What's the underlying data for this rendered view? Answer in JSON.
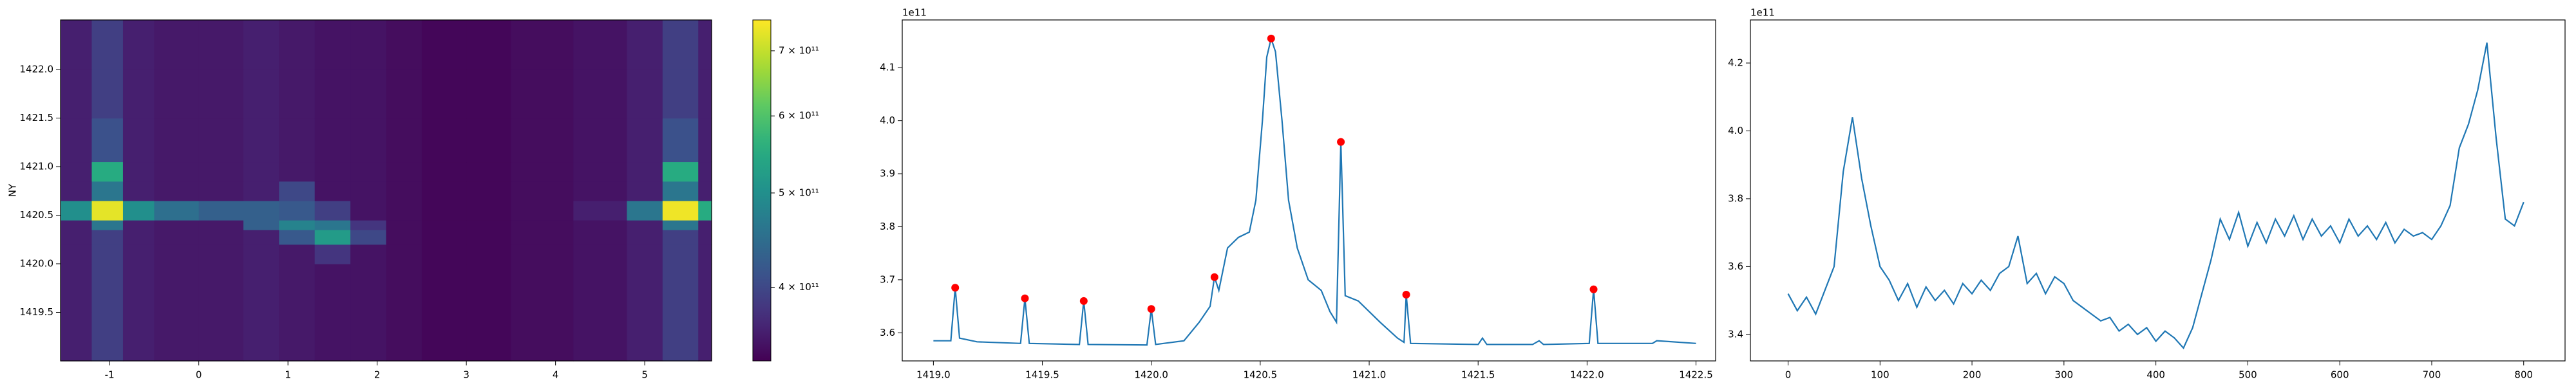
{
  "chart_data": [
    {
      "type": "heatmap",
      "ylabel": "NY",
      "colormap": "viridis",
      "xlim": [
        -1.55,
        5.75
      ],
      "ylim": [
        1419.0,
        1422.51
      ],
      "xticks": [
        -1,
        0,
        1,
        2,
        3,
        4,
        5
      ],
      "yticks": [
        1419.5,
        {
          "value": 1420,
          "label": "1420.0"
        },
        1420.5,
        {
          "value": 1421,
          "label": "1421.0"
        },
        1421.5,
        {
          "value": 1422,
          "label": "1422.0"
        }
      ],
      "x_edges": [
        -1.55,
        -1.2,
        -0.85,
        -0.5,
        0,
        0.5,
        0.9,
        1.3,
        1.7,
        2.1,
        2.5,
        3.0,
        3.5,
        4.2,
        4.8,
        5.2,
        5.6,
        5.75
      ],
      "y_edges": [
        1419.0,
        1419.5,
        1420.0,
        1420.2,
        1420.35,
        1420.45,
        1420.65,
        1420.85,
        1421.05,
        1421.5,
        1422.0,
        1422.51
      ],
      "z": [
        [
          360000000000.0,
          390000000000.0,
          360000000000.0,
          355000000000.0,
          355000000000.0,
          360000000000.0,
          355000000000.0,
          350000000000.0,
          350000000000.0,
          345000000000.0,
          340000000000.0,
          340000000000.0,
          345000000000.0,
          350000000000.0,
          360000000000.0,
          390000000000.0,
          360000000000.0
        ],
        [
          360000000000.0,
          390000000000.0,
          360000000000.0,
          355000000000.0,
          355000000000.0,
          360000000000.0,
          355000000000.0,
          350000000000.0,
          350000000000.0,
          345000000000.0,
          340000000000.0,
          340000000000.0,
          345000000000.0,
          350000000000.0,
          360000000000.0,
          390000000000.0,
          360000000000.0
        ],
        [
          360000000000.0,
          390000000000.0,
          360000000000.0,
          355000000000.0,
          355000000000.0,
          360000000000.0,
          355000000000.0,
          380000000000.0,
          350000000000.0,
          345000000000.0,
          340000000000.0,
          340000000000.0,
          345000000000.0,
          350000000000.0,
          360000000000.0,
          390000000000.0,
          360000000000.0
        ],
        [
          360000000000.0,
          390000000000.0,
          360000000000.0,
          355000000000.0,
          355000000000.0,
          360000000000.0,
          420000000000.0,
          520000000000.0,
          400000000000.0,
          345000000000.0,
          340000000000.0,
          340000000000.0,
          345000000000.0,
          350000000000.0,
          360000000000.0,
          390000000000.0,
          360000000000.0
        ],
        [
          360000000000.0,
          460000000000.0,
          360000000000.0,
          355000000000.0,
          355000000000.0,
          430000000000.0,
          480000000000.0,
          460000000000.0,
          380000000000.0,
          345000000000.0,
          340000000000.0,
          340000000000.0,
          345000000000.0,
          350000000000.0,
          360000000000.0,
          460000000000.0,
          360000000000.0
        ],
        [
          500000000000.0,
          730000000000.0,
          500000000000.0,
          450000000000.0,
          430000000000.0,
          430000000000.0,
          420000000000.0,
          390000000000.0,
          350000000000.0,
          345000000000.0,
          340000000000.0,
          340000000000.0,
          345000000000.0,
          360000000000.0,
          460000000000.0,
          740000000000.0,
          550000000000.0
        ],
        [
          360000000000.0,
          460000000000.0,
          360000000000.0,
          355000000000.0,
          355000000000.0,
          360000000000.0,
          400000000000.0,
          350000000000.0,
          350000000000.0,
          345000000000.0,
          340000000000.0,
          340000000000.0,
          345000000000.0,
          350000000000.0,
          360000000000.0,
          460000000000.0,
          360000000000.0
        ],
        [
          360000000000.0,
          550000000000.0,
          360000000000.0,
          355000000000.0,
          355000000000.0,
          360000000000.0,
          355000000000.0,
          350000000000.0,
          350000000000.0,
          345000000000.0,
          340000000000.0,
          340000000000.0,
          345000000000.0,
          350000000000.0,
          360000000000.0,
          550000000000.0,
          360000000000.0
        ],
        [
          360000000000.0,
          410000000000.0,
          360000000000.0,
          355000000000.0,
          355000000000.0,
          360000000000.0,
          355000000000.0,
          350000000000.0,
          350000000000.0,
          345000000000.0,
          340000000000.0,
          340000000000.0,
          345000000000.0,
          350000000000.0,
          360000000000.0,
          410000000000.0,
          360000000000.0
        ],
        [
          360000000000.0,
          390000000000.0,
          360000000000.0,
          355000000000.0,
          355000000000.0,
          360000000000.0,
          355000000000.0,
          350000000000.0,
          350000000000.0,
          345000000000.0,
          340000000000.0,
          340000000000.0,
          345000000000.0,
          350000000000.0,
          360000000000.0,
          390000000000.0,
          360000000000.0
        ],
        [
          360000000000.0,
          390000000000.0,
          360000000000.0,
          355000000000.0,
          355000000000.0,
          360000000000.0,
          355000000000.0,
          350000000000.0,
          350000000000.0,
          345000000000.0,
          340000000000.0,
          340000000000.0,
          345000000000.0,
          350000000000.0,
          360000000000.0,
          390000000000.0,
          360000000000.0
        ]
      ],
      "colorbar": {
        "scale": "log",
        "lim": [
          336000000000.0,
          753000000000.0
        ],
        "ticks": [
          {
            "value": 400000000000.0,
            "label": "4 × 10¹¹"
          },
          {
            "value": 500000000000.0,
            "label": "5 × 10¹¹"
          },
          {
            "value": 600000000000.0,
            "label": "6 × 10¹¹"
          },
          {
            "value": 700000000000.0,
            "label": "7 × 10¹¹"
          }
        ]
      }
    },
    {
      "type": "line",
      "offset_label": "1e11",
      "xlim": [
        1418.857,
        1422.59
      ],
      "ylim": [
        3.547,
        4.19
      ],
      "xticks": [
        {
          "value": 1419,
          "label": "1419.0"
        },
        1419.5,
        {
          "value": 1420,
          "label": "1420.0"
        },
        1420.5,
        {
          "value": 1421,
          "label": "1421.0"
        },
        1421.5,
        {
          "value": 1422,
          "label": "1422.0"
        },
        1422.5
      ],
      "yticks": [
        3.6,
        3.7,
        3.8,
        3.9,
        {
          "value": 4,
          "label": "4.0"
        },
        4.1
      ],
      "line": {
        "color": "#1f77b4",
        "x": [
          1419.0,
          1419.08,
          1419.1,
          1419.12,
          1419.2,
          1419.4,
          1419.42,
          1419.44,
          1419.67,
          1419.69,
          1419.71,
          1419.98,
          1420.0,
          1420.02,
          1420.15,
          1420.22,
          1420.27,
          1420.29,
          1420.31,
          1420.35,
          1420.4,
          1420.45,
          1420.48,
          1420.51,
          1420.53,
          1420.55,
          1420.57,
          1420.6,
          1420.63,
          1420.67,
          1420.72,
          1420.78,
          1420.82,
          1420.85,
          1420.87,
          1420.89,
          1420.95,
          1421.05,
          1421.13,
          1421.16,
          1421.17,
          1421.19,
          1421.5,
          1421.52,
          1421.54,
          1421.75,
          1421.78,
          1421.8,
          1422.01,
          1422.03,
          1422.05,
          1422.3,
          1422.32,
          1422.5
        ],
        "values": [
          3.585,
          3.585,
          3.685,
          3.59,
          3.583,
          3.58,
          3.665,
          3.58,
          3.578,
          3.66,
          3.578,
          3.577,
          3.645,
          3.578,
          3.585,
          3.62,
          3.65,
          3.705,
          3.68,
          3.76,
          3.78,
          3.79,
          3.85,
          4.0,
          4.12,
          4.155,
          4.13,
          4.0,
          3.85,
          3.76,
          3.7,
          3.68,
          3.64,
          3.62,
          3.96,
          3.67,
          3.66,
          3.62,
          3.59,
          3.582,
          3.672,
          3.58,
          3.578,
          3.59,
          3.578,
          3.578,
          3.585,
          3.578,
          3.58,
          3.682,
          3.58,
          3.58,
          3.585,
          3.58
        ]
      },
      "peaks": {
        "color": "#ff0000",
        "x": [
          1419.1,
          1419.42,
          1419.69,
          1420.0,
          1420.29,
          1420.55,
          1420.87,
          1421.17,
          1422.03
        ],
        "values": [
          3.685,
          3.665,
          3.66,
          3.645,
          3.705,
          4.155,
          3.96,
          3.672,
          3.682
        ]
      }
    },
    {
      "type": "line",
      "offset_label": "1e11",
      "xlim": [
        -41,
        845
      ],
      "ylim": [
        3.322,
        4.327
      ],
      "xticks": [
        0,
        100,
        200,
        300,
        400,
        500,
        600,
        700,
        800
      ],
      "yticks": [
        3.4,
        3.6,
        3.8,
        {
          "value": 4,
          "label": "4.0"
        },
        4.2
      ],
      "line": {
        "color": "#1f77b4",
        "x": [
          0,
          10,
          20,
          30,
          40,
          50,
          60,
          70,
          80,
          90,
          100,
          110,
          120,
          130,
          140,
          150,
          160,
          170,
          180,
          190,
          200,
          210,
          220,
          230,
          240,
          250,
          260,
          270,
          280,
          290,
          300,
          310,
          320,
          330,
          340,
          350,
          360,
          370,
          380,
          390,
          400,
          410,
          420,
          430,
          440,
          450,
          460,
          470,
          480,
          490,
          500,
          510,
          520,
          530,
          540,
          550,
          560,
          570,
          580,
          590,
          600,
          610,
          620,
          630,
          640,
          650,
          660,
          670,
          680,
          690,
          700,
          710,
          720,
          730,
          740,
          750,
          760,
          770,
          780,
          790,
          800
        ],
        "values": [
          3.52,
          3.47,
          3.51,
          3.46,
          3.53,
          3.6,
          3.88,
          4.04,
          3.86,
          3.72,
          3.6,
          3.56,
          3.5,
          3.55,
          3.48,
          3.54,
          3.5,
          3.53,
          3.49,
          3.55,
          3.52,
          3.56,
          3.53,
          3.58,
          3.6,
          3.69,
          3.55,
          3.58,
          3.52,
          3.57,
          3.55,
          3.5,
          3.48,
          3.46,
          3.44,
          3.45,
          3.41,
          3.43,
          3.4,
          3.42,
          3.38,
          3.41,
          3.39,
          3.36,
          3.42,
          3.52,
          3.62,
          3.74,
          3.68,
          3.76,
          3.66,
          3.73,
          3.67,
          3.74,
          3.69,
          3.75,
          3.68,
          3.74,
          3.69,
          3.72,
          3.67,
          3.74,
          3.69,
          3.72,
          3.68,
          3.73,
          3.67,
          3.71,
          3.69,
          3.7,
          3.68,
          3.72,
          3.78,
          3.95,
          4.02,
          4.12,
          4.26,
          3.98,
          3.74,
          3.72,
          3.79
        ]
      }
    }
  ]
}
